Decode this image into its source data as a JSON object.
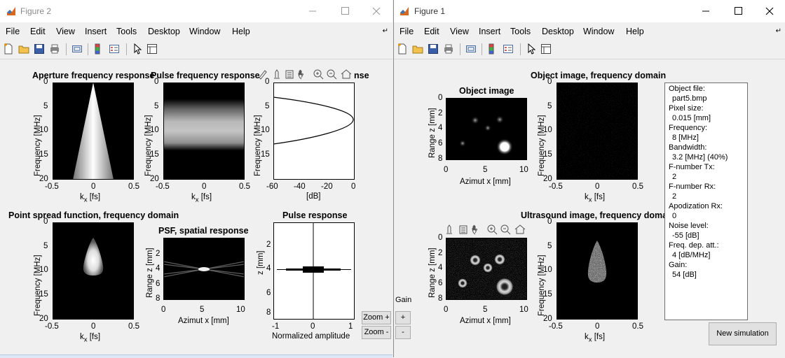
{
  "figure2": {
    "title": "Figure 2",
    "menus": [
      "File",
      "Edit",
      "View",
      "Insert",
      "Tools",
      "Desktop",
      "Window",
      "Help"
    ],
    "plots": {
      "aperture": {
        "title": "Aperture frequency response",
        "ylabel": "Frequency [MHz]",
        "yticks": [
          "0",
          "5",
          "10",
          "15",
          "20"
        ],
        "xticks": [
          "-0.5",
          "0",
          "0.5"
        ],
        "xlabel": "k",
        "xlabel_sub": "x",
        "xlabel_unit": " [fs]"
      },
      "pulse_freq": {
        "title": "Pulse frequency response",
        "ylabel": "Frequency [MHz]",
        "yticks": [
          "0",
          "5",
          "10",
          "15",
          "20"
        ],
        "xticks": [
          "-0.5",
          "0",
          "0.5"
        ],
        "xlabel": "k",
        "xlabel_sub": "x",
        "xlabel_unit": " [fs]"
      },
      "nse": {
        "title": "nse",
        "ylabel": "Frequency [MHz]",
        "yticks": [
          "0",
          "5",
          "10",
          "15"
        ],
        "xticks": [
          "-60",
          "-40",
          "-20",
          "0"
        ],
        "xlabel": "[dB]"
      },
      "psf_freq": {
        "title": "Point spread function, frequency domain",
        "ylabel": "Frequency [MHz]",
        "yticks": [
          "0",
          "5",
          "10",
          "15",
          "20"
        ],
        "xticks": [
          "-0.5",
          "0",
          "0.5"
        ],
        "xlabel": "k",
        "xlabel_sub": "x",
        "xlabel_unit": " [fs]"
      },
      "psf_spatial": {
        "title": "PSF, spatial response",
        "ylabel": "Range z [mm]",
        "yticks": [
          "2",
          "4",
          "6",
          "8"
        ],
        "xticks": [
          "0",
          "5",
          "10"
        ],
        "xlabel": "Azimut x [mm]"
      },
      "pulse_resp": {
        "title": "Pulse response",
        "ylabel": "z [mm]",
        "yticks": [
          "2",
          "4",
          "6",
          "8"
        ],
        "xticks": [
          "-1",
          "0",
          "1"
        ],
        "xlabel": "Normalized amplitude"
      }
    },
    "zoom_plus": "Zoom +",
    "zoom_minus": "Zoom -"
  },
  "figure1": {
    "title": "Figure 1",
    "menus": [
      "File",
      "Edit",
      "View",
      "Insert",
      "Tools",
      "Desktop",
      "Window",
      "Help"
    ],
    "plots": {
      "object_image": {
        "title": "Object image",
        "ylabel": "Range z [mm]",
        "yticks": [
          "0",
          "2",
          "4",
          "6",
          "8"
        ],
        "xticks": [
          "0",
          "5",
          "10"
        ],
        "xlabel": "Azimut x [mm]"
      },
      "object_freq": {
        "title": "Object image, frequency domain",
        "ylabel": "Frequency [MHz]",
        "yticks": [
          "0",
          "5",
          "10",
          "15",
          "20"
        ],
        "xticks": [
          "-0.5",
          "0",
          "0.5"
        ],
        "xlabel": "k",
        "xlabel_sub": "x",
        "xlabel_unit": " [fs]"
      },
      "us_image": {
        "title": "",
        "ylabel": "Range z [mm]",
        "yticks": [
          "0",
          "2",
          "4",
          "6",
          "8"
        ],
        "xticks": [
          "0",
          "5",
          "10"
        ],
        "xlabel": "Azimut x [mm]"
      },
      "us_freq": {
        "title": "Ultrasound image, frequency doma",
        "ylabel": "Frequency [MHz]",
        "yticks": [
          "0",
          "5",
          "10",
          "15",
          "20"
        ],
        "xticks": [
          "-0.5",
          "0",
          "0.5"
        ],
        "xlabel": "k",
        "xlabel_sub": "x",
        "xlabel_unit": " [fs]"
      }
    },
    "info": {
      "object_file_label": "Object file:",
      "object_file": "part5.bmp",
      "pixel_size_label": "Pixel size:",
      "pixel_size": "0.015 [mm]",
      "frequency_label": "Frequency:",
      "frequency": "8 [MHz]",
      "bandwidth_label": "Bandwidth:",
      "bandwidth": "3.2 [MHz] (40%)",
      "fnum_tx_label": "F-number Tx:",
      "fnum_tx": "2",
      "fnum_rx_label": "F-number Rx:",
      "fnum_rx": "2",
      "apod_label": "Apodization Rx:",
      "apod": "0",
      "noise_label": "Noise level:",
      "noise": "-55 [dB]",
      "att_label": "Freq. dep. att.:",
      "att": "4 [dB/MHz]",
      "gain_label": "Gain:",
      "gain": "54 [dB]"
    },
    "gain_label": "Gain",
    "gain_plus": "+",
    "gain_minus": "-",
    "new_simulation": "New simulation"
  }
}
